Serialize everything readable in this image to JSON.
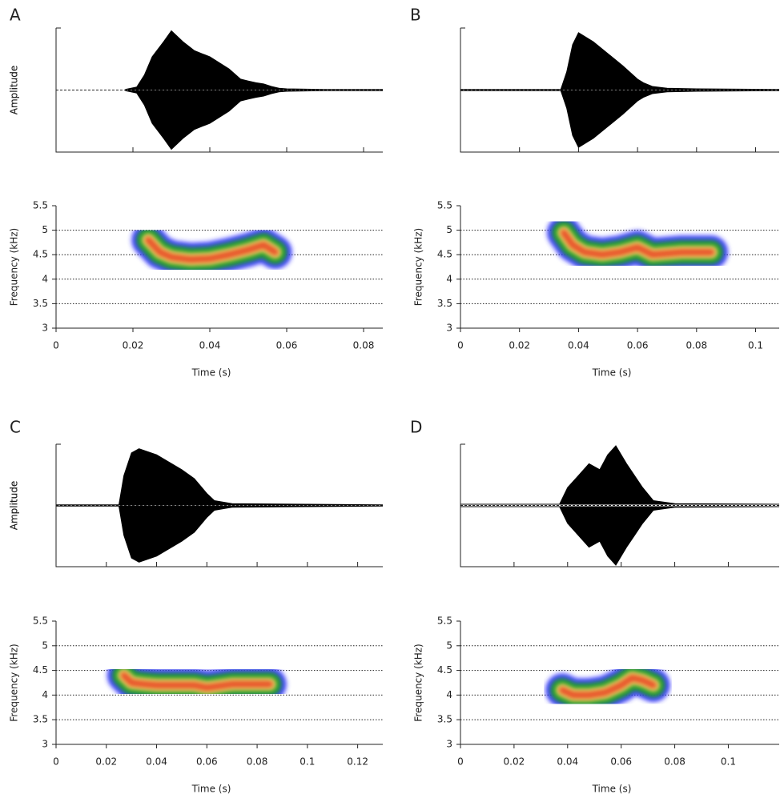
{
  "chart_data": [
    {
      "type": "spectrogram",
      "label": "A",
      "amplitude_label": "Amplitude",
      "xlabel": "Time (s)",
      "ylabel": "Frequency (kHz)",
      "xlim": [
        0,
        0.085
      ],
      "xticks": [
        0,
        0.02,
        0.04,
        0.06,
        0.08
      ],
      "ylim": [
        3,
        5.5
      ],
      "yticks": [
        3,
        3.5,
        4,
        4.5,
        5,
        5.5
      ],
      "grid": true,
      "amplitude_ylim": [
        -1,
        1
      ],
      "envelope_x": [
        0.018,
        0.021,
        0.023,
        0.025,
        0.028,
        0.03,
        0.033,
        0.036,
        0.04,
        0.045,
        0.048,
        0.05,
        0.052,
        0.054,
        0.056,
        0.058,
        0.06,
        0.07,
        0.085
      ],
      "envelope_values": [
        0.01,
        0.05,
        0.25,
        0.55,
        0.8,
        0.98,
        0.8,
        0.65,
        0.55,
        0.35,
        0.18,
        0.15,
        0.12,
        0.1,
        0.06,
        0.03,
        0.02,
        0.01,
        0.01
      ],
      "contour_x": [
        0.024,
        0.027,
        0.03,
        0.035,
        0.04,
        0.045,
        0.05,
        0.054,
        0.057
      ],
      "contour_freq": [
        4.8,
        4.55,
        4.45,
        4.4,
        4.42,
        4.5,
        4.6,
        4.7,
        4.55
      ]
    },
    {
      "type": "spectrogram",
      "label": "B",
      "amplitude_label": "Amplitude",
      "xlabel": "Time (s)",
      "ylabel": "Frequency (kHz)",
      "xlim": [
        0,
        0.108
      ],
      "xticks": [
        0,
        0.02,
        0.04,
        0.06,
        0.08,
        0.1
      ],
      "ylim": [
        3,
        5.5
      ],
      "yticks": [
        3,
        3.5,
        4,
        4.5,
        5,
        5.5
      ],
      "grid": true,
      "amplitude_ylim": [
        -1,
        1
      ],
      "envelope_x": [
        0,
        0.034,
        0.036,
        0.038,
        0.04,
        0.045,
        0.05,
        0.055,
        0.06,
        0.062,
        0.065,
        0.07,
        0.08,
        0.108
      ],
      "envelope_values": [
        0.01,
        0.01,
        0.3,
        0.75,
        0.95,
        0.8,
        0.6,
        0.4,
        0.18,
        0.12,
        0.06,
        0.03,
        0.02,
        0.01
      ],
      "contour_x": [
        0.035,
        0.038,
        0.042,
        0.048,
        0.054,
        0.06,
        0.065,
        0.075,
        0.085
      ],
      "contour_freq": [
        4.95,
        4.7,
        4.55,
        4.5,
        4.55,
        4.65,
        4.5,
        4.55,
        4.55
      ]
    },
    {
      "type": "spectrogram",
      "label": "C",
      "amplitude_label": "Amplitude",
      "xlabel": "Time (s)",
      "ylabel": "Frequency (kHz)",
      "xlim": [
        0,
        0.13
      ],
      "xticks": [
        0,
        0.02,
        0.04,
        0.06,
        0.08,
        0.1,
        0.12
      ],
      "ylim": [
        3,
        5.5
      ],
      "yticks": [
        3,
        3.5,
        4,
        4.5,
        5,
        5.5
      ],
      "grid": true,
      "amplitude_ylim": [
        -1,
        1
      ],
      "envelope_x": [
        0,
        0.025,
        0.027,
        0.03,
        0.033,
        0.04,
        0.05,
        0.055,
        0.06,
        0.063,
        0.07,
        0.1,
        0.13
      ],
      "envelope_values": [
        0.01,
        0.01,
        0.5,
        0.88,
        0.95,
        0.85,
        0.6,
        0.45,
        0.2,
        0.08,
        0.03,
        0.02,
        0.01
      ],
      "contour_x": [
        0.027,
        0.03,
        0.035,
        0.04,
        0.045,
        0.05,
        0.055,
        0.06,
        0.07,
        0.085
      ],
      "contour_freq": [
        4.4,
        4.25,
        4.22,
        4.2,
        4.2,
        4.2,
        4.2,
        4.15,
        4.22,
        4.22
      ]
    },
    {
      "type": "spectrogram",
      "label": "D",
      "amplitude_label": "Amplitude",
      "xlabel": "Time (s)",
      "ylabel": "Frequency (kHz)",
      "xlim": [
        0,
        0.119
      ],
      "xticks": [
        0,
        0.02,
        0.04,
        0.06,
        0.08,
        0.1
      ],
      "ylim": [
        3,
        5.5
      ],
      "yticks": [
        3,
        3.5,
        4,
        4.5,
        5,
        5.5
      ],
      "grid": true,
      "amplitude_ylim": [
        -1,
        1
      ],
      "envelope_x": [
        0,
        0.037,
        0.04,
        0.044,
        0.048,
        0.052,
        0.055,
        0.058,
        0.062,
        0.065,
        0.068,
        0.072,
        0.08,
        0.119
      ],
      "envelope_values": [
        0.02,
        0.02,
        0.3,
        0.5,
        0.7,
        0.6,
        0.85,
        1.0,
        0.7,
        0.5,
        0.3,
        0.08,
        0.03,
        0.02
      ],
      "contour_x": [
        0.038,
        0.042,
        0.048,
        0.054,
        0.06,
        0.064,
        0.068,
        0.072
      ],
      "contour_freq": [
        4.1,
        4.0,
        4.0,
        4.05,
        4.2,
        4.35,
        4.3,
        4.2
      ]
    }
  ]
}
